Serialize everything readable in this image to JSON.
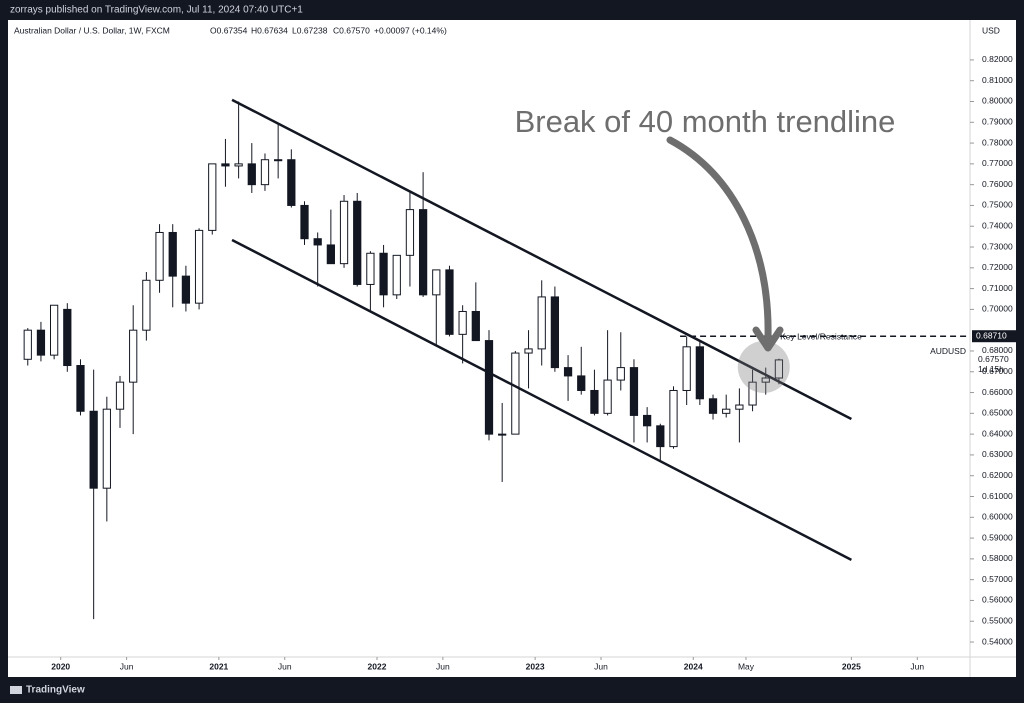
{
  "header": {
    "published": "zorrays published on TradingView.com, Jul 11, 2024 07:40 UTC+1",
    "symbol_title": "Australian Dollar / U.S. Dollar, 1W, FXCM",
    "ohlc": [
      "O0.67354",
      "H0.67634",
      "L0.67238",
      "C0.67570",
      "+0.00097 (+0.14%)"
    ],
    "currency": "USD"
  },
  "footer": {
    "brand": "TradingView"
  },
  "chart_data": {
    "type": "candlestick",
    "x": [
      "2019-10",
      "2019-11",
      "2019-12",
      "2020-01",
      "2020-02",
      "2020-03",
      "2020-04",
      "2020-05",
      "2020-06",
      "2020-07",
      "2020-08",
      "2020-09",
      "2020-10",
      "2020-11",
      "2020-12",
      "2021-01",
      "2021-02",
      "2021-03",
      "2021-04",
      "2021-05",
      "2021-06",
      "2021-07",
      "2021-08",
      "2021-09",
      "2021-10",
      "2021-11",
      "2021-12",
      "2022-01",
      "2022-02",
      "2022-03",
      "2022-04",
      "2022-05",
      "2022-06",
      "2022-07",
      "2022-08",
      "2022-09",
      "2022-10",
      "2022-11",
      "2022-12",
      "2023-01",
      "2023-02",
      "2023-03",
      "2023-04",
      "2023-05",
      "2023-06",
      "2023-07",
      "2023-08",
      "2023-09",
      "2023-10",
      "2023-11",
      "2023-12",
      "2024-01",
      "2024-02",
      "2024-03",
      "2024-04",
      "2024-05",
      "2024-06",
      "2024-07"
    ],
    "open": [
      0.676,
      0.69,
      0.678,
      0.7,
      0.673,
      0.651,
      0.614,
      0.652,
      0.665,
      0.69,
      0.714,
      0.737,
      0.716,
      0.703,
      0.738,
      0.77,
      0.769,
      0.77,
      0.76,
      0.772,
      0.772,
      0.75,
      0.734,
      0.731,
      0.722,
      0.752,
      0.712,
      0.727,
      0.707,
      0.726,
      0.748,
      0.707,
      0.719,
      0.688,
      0.699,
      0.685,
      0.64,
      0.64,
      0.679,
      0.681,
      0.706,
      0.672,
      0.668,
      0.661,
      0.65,
      0.666,
      0.672,
      0.649,
      0.644,
      0.634,
      0.661,
      0.682,
      0.657,
      0.65,
      0.652,
      0.654,
      0.665,
      0.667
    ],
    "high": [
      0.691,
      0.694,
      0.702,
      0.703,
      0.676,
      0.671,
      0.658,
      0.668,
      0.702,
      0.718,
      0.741,
      0.741,
      0.721,
      0.739,
      0.77,
      0.782,
      0.8,
      0.78,
      0.775,
      0.789,
      0.777,
      0.752,
      0.737,
      0.748,
      0.755,
      0.756,
      0.728,
      0.731,
      0.726,
      0.757,
      0.766,
      0.719,
      0.721,
      0.702,
      0.713,
      0.69,
      0.655,
      0.68,
      0.69,
      0.714,
      0.711,
      0.678,
      0.682,
      0.671,
      0.69,
      0.689,
      0.676,
      0.653,
      0.645,
      0.663,
      0.687,
      0.685,
      0.659,
      0.659,
      0.662,
      0.671,
      0.672,
      0.6763
    ],
    "low": [
      0.673,
      0.675,
      0.676,
      0.67,
      0.649,
      0.551,
      0.598,
      0.643,
      0.64,
      0.685,
      0.708,
      0.701,
      0.699,
      0.7,
      0.736,
      0.759,
      0.763,
      0.756,
      0.757,
      0.763,
      0.749,
      0.731,
      0.711,
      0.722,
      0.72,
      0.711,
      0.699,
      0.701,
      0.705,
      0.711,
      0.706,
      0.683,
      0.687,
      0.674,
      0.685,
      0.637,
      0.617,
      0.64,
      0.662,
      0.673,
      0.67,
      0.656,
      0.659,
      0.649,
      0.649,
      0.661,
      0.636,
      0.636,
      0.627,
      0.633,
      0.654,
      0.654,
      0.647,
      0.648,
      0.636,
      0.651,
      0.659,
      0.664
    ],
    "close": [
      0.69,
      0.678,
      0.702,
      0.673,
      0.651,
      0.614,
      0.652,
      0.665,
      0.69,
      0.714,
      0.737,
      0.716,
      0.703,
      0.738,
      0.77,
      0.769,
      0.77,
      0.76,
      0.772,
      0.772,
      0.75,
      0.734,
      0.731,
      0.722,
      0.752,
      0.712,
      0.727,
      0.707,
      0.726,
      0.748,
      0.707,
      0.719,
      0.688,
      0.699,
      0.685,
      0.64,
      0.64,
      0.679,
      0.681,
      0.706,
      0.672,
      0.668,
      0.661,
      0.65,
      0.666,
      0.672,
      0.649,
      0.644,
      0.634,
      0.661,
      0.682,
      0.657,
      0.65,
      0.652,
      0.654,
      0.665,
      0.667,
      0.6757
    ],
    "up_color": "#ffffff",
    "down_color": "#131722",
    "xlim": [
      "2019-09",
      "2025-10"
    ],
    "xticks": [
      {
        "value": "2020-01",
        "label": "2020"
      },
      {
        "value": "2020-06",
        "label": "Jun"
      },
      {
        "value": "2021-01",
        "label": "2021"
      },
      {
        "value": "2021-06",
        "label": "Jun"
      },
      {
        "value": "2022-01",
        "label": "2022"
      },
      {
        "value": "2022-06",
        "label": "Jun"
      },
      {
        "value": "2023-01",
        "label": "2023"
      },
      {
        "value": "2023-06",
        "label": "Jun"
      },
      {
        "value": "2024-01",
        "label": "2024"
      },
      {
        "value": "2024-05",
        "label": "May"
      },
      {
        "value": "2025-01",
        "label": "2025"
      },
      {
        "value": "2025-06",
        "label": "Jun"
      }
    ],
    "ylim": [
      0.5328,
      0.8392
    ],
    "yticks": [
      {
        "value": 0.54,
        "label": "0.54000"
      },
      {
        "value": 0.55,
        "label": "0.55000"
      },
      {
        "value": 0.56,
        "label": "0.56000"
      },
      {
        "value": 0.57,
        "label": "0.57000"
      },
      {
        "value": 0.58,
        "label": "0.58000"
      },
      {
        "value": 0.59,
        "label": "0.59000"
      },
      {
        "value": 0.6,
        "label": "0.60000"
      },
      {
        "value": 0.61,
        "label": "0.61000"
      },
      {
        "value": 0.62,
        "label": "0.62000"
      },
      {
        "value": 0.63,
        "label": "0.63000"
      },
      {
        "value": 0.64,
        "label": "0.64000"
      },
      {
        "value": 0.65,
        "label": "0.65000"
      },
      {
        "value": 0.66,
        "label": "0.66000"
      },
      {
        "value": 0.67,
        "label": "0.67000"
      },
      {
        "value": 0.68,
        "label": "0.68000"
      },
      {
        "value": 0.7,
        "label": "0.70000"
      },
      {
        "value": 0.71,
        "label": "0.71000"
      },
      {
        "value": 0.72,
        "label": "0.72000"
      },
      {
        "value": 0.73,
        "label": "0.73000"
      },
      {
        "value": 0.74,
        "label": "0.74000"
      },
      {
        "value": 0.75,
        "label": "0.75000"
      },
      {
        "value": 0.76,
        "label": "0.76000"
      },
      {
        "value": 0.77,
        "label": "0.77000"
      },
      {
        "value": 0.78,
        "label": "0.78000"
      },
      {
        "value": 0.79,
        "label": "0.79000"
      },
      {
        "value": 0.8,
        "label": "0.80000"
      },
      {
        "value": 0.81,
        "label": "0.81000"
      },
      {
        "value": 0.82,
        "label": "0.82000"
      }
    ],
    "grid": false,
    "trendlines": [
      {
        "x": [
          "2021-02",
          "2025-01"
        ],
        "y": [
          0.8008,
          0.6473
        ]
      },
      {
        "x": [
          "2021-02",
          "2025-01"
        ],
        "y": [
          0.7334,
          0.5795
        ]
      }
    ],
    "key_level": {
      "value": 0.6871,
      "label": "0.68710",
      "text": "Key Level/Resistance",
      "from": "2023-12"
    },
    "last_price": {
      "symbol": "AUDUSD",
      "value": 0.6757,
      "label": "0.67570",
      "countdown": "1d 15h"
    },
    "highlight": {
      "x": "2024-06",
      "y": 0.6723
    },
    "annotation": "Break of 40 month trendline"
  }
}
